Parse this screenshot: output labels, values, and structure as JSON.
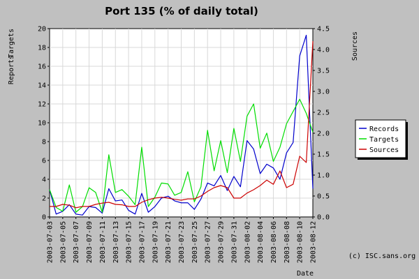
{
  "chart_data": {
    "type": "line",
    "title": "Port 135 (% of daily total)",
    "left_axis_labels": [
      "Reports",
      "Targets"
    ],
    "right_axis_label": "Sources",
    "xlabel": "Date",
    "credit": "(c) ISC.sans.org",
    "ylim_left": [
      0,
      20
    ],
    "ylim_right": [
      0,
      4.5
    ],
    "yticks_left": [
      "0",
      "2",
      "4",
      "6",
      "8",
      "10",
      "12",
      "14",
      "16",
      "18",
      "20"
    ],
    "yticks_right": [
      "0.0",
      "0.5",
      "1.0",
      "1.5",
      "2.0",
      "2.5",
      "3.0",
      "3.5",
      "4.0",
      "4.5"
    ],
    "grid": true,
    "legend_position": "right",
    "x": [
      "2003-07-03",
      "2003-07-04",
      "2003-07-05",
      "2003-07-06",
      "2003-07-07",
      "2003-07-08",
      "2003-07-09",
      "2003-07-10",
      "2003-07-11",
      "2003-07-12",
      "2003-07-13",
      "2003-07-14",
      "2003-07-15",
      "2003-07-16",
      "2003-07-17",
      "2003-07-18",
      "2003-07-19",
      "2003-07-20",
      "2003-07-21",
      "2003-07-22",
      "2003-07-23",
      "2003-07-24",
      "2003-07-25",
      "2003-07-26",
      "2003-07-27",
      "2003-07-28",
      "2003-07-29",
      "2003-07-30",
      "2003-07-31",
      "2003-08-01",
      "2003-08-02",
      "2003-08-03",
      "2003-08-04",
      "2003-08-05",
      "2003-08-06",
      "2003-08-07",
      "2003-08-08",
      "2003-08-09",
      "2003-08-10",
      "2003-08-11",
      "2003-08-12"
    ],
    "xtick_labels": [
      "2003-07-03",
      "2003-07-05",
      "2003-07-07",
      "2003-07-09",
      "2003-07-11",
      "2003-07-13",
      "2003-07-15",
      "2003-07-17",
      "2003-07-19",
      "2003-07-21",
      "2003-07-23",
      "2003-07-25",
      "2003-07-27",
      "2003-07-29",
      "2003-07-31",
      "2003-08-02",
      "2003-08-04",
      "2003-08-06",
      "2003-08-08",
      "2003-08-10",
      "2003-08-12"
    ],
    "series": [
      {
        "name": "Records",
        "axis": "left",
        "color": "#0000cc",
        "values": [
          2.9,
          0.3,
          0.6,
          1.3,
          0.3,
          0.2,
          1.1,
          1.0,
          0.4,
          3.0,
          1.7,
          1.8,
          0.7,
          0.3,
          2.5,
          0.5,
          1.1,
          2.0,
          2.2,
          1.7,
          1.5,
          1.5,
          0.8,
          1.9,
          3.6,
          3.3,
          4.4,
          2.8,
          4.3,
          3.2,
          8.1,
          7.2,
          4.6,
          5.6,
          5.2,
          4.0,
          6.8,
          7.9,
          17.1,
          19.3,
          3.0
        ]
      },
      {
        "name": "Targets",
        "axis": "left",
        "color": "#00dd00",
        "values": [
          2.9,
          1.0,
          0.6,
          3.4,
          0.5,
          1.1,
          3.1,
          2.6,
          0.5,
          6.6,
          2.6,
          2.9,
          2.2,
          1.3,
          7.4,
          1.1,
          2.1,
          3.6,
          3.5,
          2.3,
          2.6,
          4.8,
          1.6,
          3.2,
          9.2,
          4.9,
          8.1,
          4.7,
          9.4,
          5.9,
          10.7,
          12.0,
          7.3,
          8.9,
          5.9,
          7.4,
          9.9,
          11.2,
          12.5,
          11.0,
          9.0
        ]
      },
      {
        "name": "Sources",
        "axis": "right",
        "color": "#cc0000",
        "values": [
          0.25,
          0.25,
          0.3,
          0.28,
          0.22,
          0.25,
          0.25,
          0.3,
          0.33,
          0.35,
          0.3,
          0.29,
          0.25,
          0.25,
          0.35,
          0.41,
          0.45,
          0.47,
          0.45,
          0.42,
          0.4,
          0.43,
          0.43,
          0.5,
          0.61,
          0.7,
          0.75,
          0.7,
          0.45,
          0.45,
          0.57,
          0.65,
          0.75,
          0.88,
          0.78,
          1.1,
          0.7,
          0.78,
          1.45,
          1.3,
          4.2
        ]
      }
    ]
  }
}
